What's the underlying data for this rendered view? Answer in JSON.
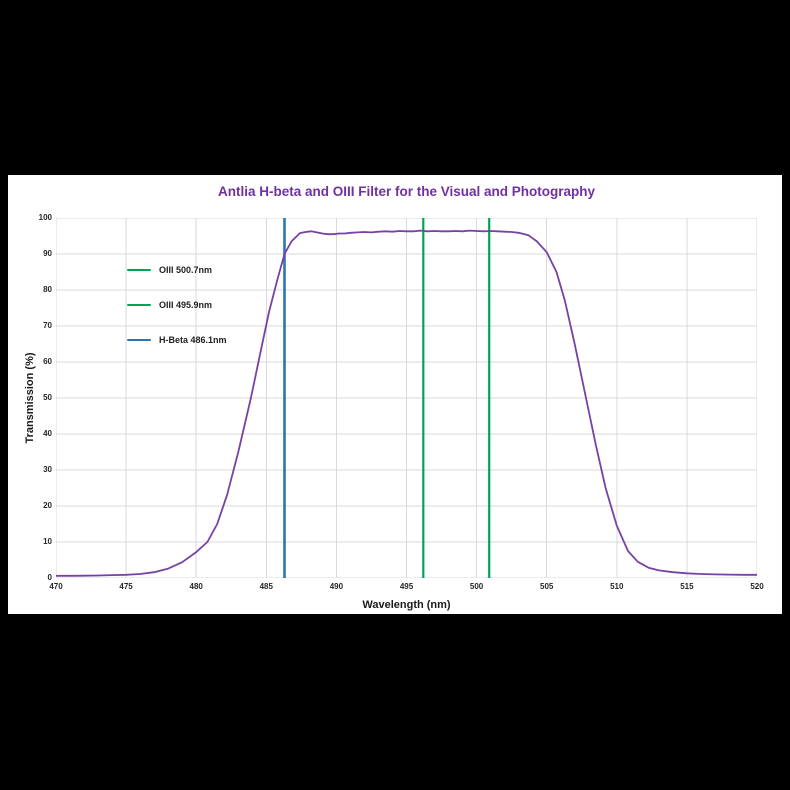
{
  "frame": {
    "background_color": "#000000",
    "panel_color": "#ffffff"
  },
  "chart_data": {
    "type": "line",
    "title": "Antlia H-beta and OIII Filter for the Visual and Photography",
    "title_color": "#7030a0",
    "xlabel": "Wavelength  (nm)",
    "ylabel": "Transmission  (%)",
    "xlim": [
      470,
      520
    ],
    "ylim": [
      0,
      100
    ],
    "x_ticks": [
      470,
      475,
      480,
      485,
      490,
      495,
      500,
      505,
      510,
      515,
      520
    ],
    "y_ticks": [
      0,
      10,
      20,
      30,
      40,
      50,
      60,
      70,
      80,
      90,
      100
    ],
    "grid": true,
    "grid_color": "#d9d9d9",
    "series": [
      {
        "name": "filter-transmission-curve",
        "color": "#7642a5",
        "stroke_width": 1.8,
        "points": [
          [
            470,
            0.6
          ],
          [
            471,
            0.6
          ],
          [
            472,
            0.65
          ],
          [
            473,
            0.7
          ],
          [
            474,
            0.8
          ],
          [
            475,
            0.9
          ],
          [
            476,
            1.1
          ],
          [
            477,
            1.6
          ],
          [
            478,
            2.6
          ],
          [
            479,
            4.4
          ],
          [
            480,
            7.2
          ],
          [
            480.8,
            10
          ],
          [
            481.5,
            15
          ],
          [
            482.2,
            23
          ],
          [
            483,
            35
          ],
          [
            483.9,
            50
          ],
          [
            484.6,
            63
          ],
          [
            485.2,
            74
          ],
          [
            485.8,
            83
          ],
          [
            486.3,
            90
          ],
          [
            486.8,
            93.5
          ],
          [
            487.4,
            95.8
          ],
          [
            487.8,
            96.1
          ],
          [
            488.2,
            96.3
          ],
          [
            488.6,
            96.0
          ],
          [
            489.0,
            95.7
          ],
          [
            489.4,
            95.5
          ],
          [
            489.8,
            95.5
          ],
          [
            490.2,
            95.7
          ],
          [
            490.6,
            95.7
          ],
          [
            491.0,
            95.9
          ],
          [
            491.5,
            96.0
          ],
          [
            492.0,
            96.1
          ],
          [
            492.5,
            96.0
          ],
          [
            493.0,
            96.2
          ],
          [
            493.5,
            96.3
          ],
          [
            494.0,
            96.2
          ],
          [
            494.5,
            96.4
          ],
          [
            495.0,
            96.3
          ],
          [
            495.5,
            96.3
          ],
          [
            496.0,
            96.5
          ],
          [
            496.5,
            96.3
          ],
          [
            497.0,
            96.4
          ],
          [
            497.5,
            96.3
          ],
          [
            498.0,
            96.3
          ],
          [
            498.5,
            96.4
          ],
          [
            499.0,
            96.3
          ],
          [
            499.5,
            96.5
          ],
          [
            500.0,
            96.4
          ],
          [
            500.5,
            96.3
          ],
          [
            501.0,
            96.4
          ],
          [
            501.5,
            96.3
          ],
          [
            502.0,
            96.2
          ],
          [
            502.5,
            96.1
          ],
          [
            503.0,
            95.9
          ],
          [
            503.7,
            95.2
          ],
          [
            504.3,
            93.5
          ],
          [
            505,
            90.5
          ],
          [
            505.7,
            85
          ],
          [
            506.3,
            77
          ],
          [
            507,
            65
          ],
          [
            507.8,
            50
          ],
          [
            508.5,
            37
          ],
          [
            509.2,
            25
          ],
          [
            510,
            14.5
          ],
          [
            510.8,
            7.5
          ],
          [
            511.5,
            4.5
          ],
          [
            512.3,
            2.8
          ],
          [
            513,
            2.1
          ],
          [
            514,
            1.6
          ],
          [
            515,
            1.3
          ],
          [
            516,
            1.1
          ],
          [
            517,
            1.0
          ],
          [
            518,
            0.95
          ],
          [
            519,
            0.9
          ],
          [
            520,
            0.9
          ]
        ]
      }
    ],
    "marker_lines": [
      {
        "label": "OIII 500.7nm",
        "nm": 500.7,
        "draw_nm": 500.9,
        "color": "#00a551",
        "width": 2.2
      },
      {
        "label": "OIII 495.9nm",
        "nm": 495.9,
        "draw_nm": 496.2,
        "color": "#00a551",
        "width": 2.2
      },
      {
        "label": "H-Beta 486.1nm",
        "nm": 486.1,
        "draw_nm": 486.3,
        "color": "#2e74b5",
        "width": 2.6
      }
    ],
    "legend": {
      "position": "upper-left-inside",
      "entries": [
        {
          "label": "OIII 500.7nm",
          "color": "#00a551"
        },
        {
          "label": "OIII 495.9nm",
          "color": "#00a551"
        },
        {
          "label": "H-Beta 486.1nm",
          "color": "#2e74b5"
        }
      ]
    }
  }
}
